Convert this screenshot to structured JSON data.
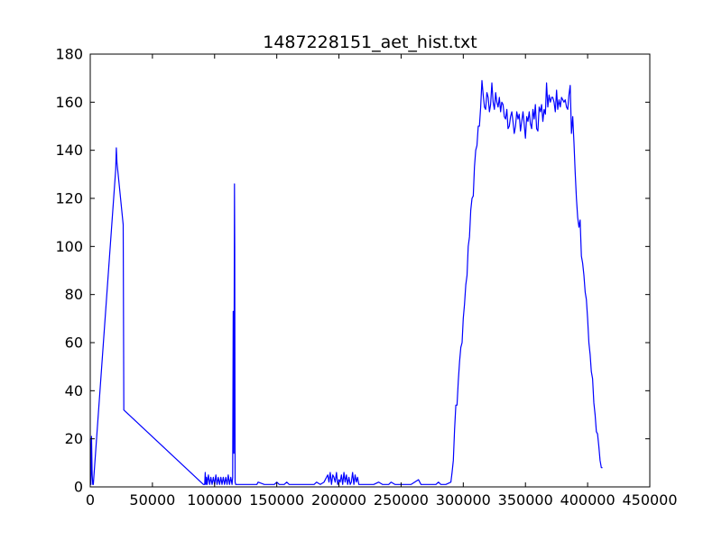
{
  "chart_data": {
    "type": "line",
    "title": "1487228151_aet_hist.txt",
    "xlabel": "",
    "ylabel": "",
    "xlim": [
      0,
      450000
    ],
    "ylim": [
      0,
      180
    ],
    "xticks": [
      "0",
      "50000",
      "100000",
      "150000",
      "200000",
      "250000",
      "300000",
      "350000",
      "400000",
      "450000"
    ],
    "yticks": [
      "0",
      "20",
      "40",
      "60",
      "80",
      "100",
      "120",
      "140",
      "160",
      "180"
    ],
    "grid": false,
    "legend": "none",
    "series": [
      {
        "color": "#0000ff",
        "x": [
          0,
          500,
          1000,
          1500,
          2000,
          2500,
          20500,
          21000,
          21500,
          26500,
          27000,
          91000,
          92000,
          92500,
          93000,
          93500,
          94000,
          95000,
          96000,
          97000,
          98000,
          99000,
          100000,
          101000,
          102000,
          103000,
          104000,
          105000,
          106000,
          107000,
          108000,
          109000,
          110000,
          111000,
          112000,
          113000,
          114000,
          114500,
          115000,
          115500,
          116000,
          116200,
          116500,
          117000,
          118000,
          120000,
          130000,
          134000,
          135000,
          140000,
          148000,
          150000,
          152000,
          156000,
          158000,
          160000,
          170000,
          180000,
          182000,
          185000,
          188000,
          190000,
          191000,
          192000,
          193000,
          194000,
          195000,
          196000,
          197000,
          198000,
          199000,
          200000,
          201000,
          202000,
          203000,
          204000,
          205000,
          206000,
          207000,
          208000,
          209000,
          210000,
          211000,
          212000,
          213000,
          214000,
          215000,
          216000,
          218000,
          222000,
          228000,
          232000,
          235000,
          240000,
          242000,
          245000,
          250000,
          258000,
          264000,
          266000,
          270000,
          278000,
          280000,
          282000,
          286000,
          290000,
          291000,
          292000,
          293000,
          294000,
          295000,
          296000,
          297000,
          298000,
          299000,
          300000,
          301000,
          302000,
          303000,
          304000,
          305000,
          306000,
          307000,
          308000,
          309000,
          310000,
          311000,
          312000,
          313000,
          314000,
          315000,
          316000,
          317000,
          318000,
          319000,
          320000,
          321000,
          322000,
          323000,
          324000,
          325000,
          326000,
          327000,
          328000,
          329000,
          330000,
          331000,
          332000,
          333000,
          334000,
          335000,
          336000,
          337000,
          338000,
          339000,
          340000,
          341000,
          342000,
          343000,
          344000,
          345000,
          346000,
          347000,
          348000,
          349000,
          350000,
          351000,
          352000,
          353000,
          354000,
          355000,
          356000,
          357000,
          358000,
          359000,
          360000,
          361000,
          362000,
          363000,
          364000,
          365000,
          366000,
          367000,
          368000,
          369000,
          370000,
          371000,
          372000,
          373000,
          374000,
          375000,
          376000,
          377000,
          378000,
          379000,
          380000,
          381000,
          382000,
          383000,
          384000,
          385000,
          386000,
          387000,
          388000,
          389000,
          390000,
          391000,
          392000,
          393000,
          394000,
          395000,
          396000,
          397000,
          398000,
          399000,
          400000,
          401000,
          402000,
          403000,
          404000,
          405000,
          406000,
          407000,
          408000,
          409000,
          410000,
          411000,
          412000
        ],
        "y": [
          20,
          1,
          21,
          5,
          1,
          1,
          132,
          141,
          135,
          109,
          32,
          1,
          1,
          6,
          1,
          4,
          1,
          5,
          1,
          4,
          1,
          4,
          1,
          5,
          1,
          4,
          1,
          4,
          1,
          4,
          1,
          4,
          1,
          5,
          1,
          4,
          1,
          4,
          73,
          14,
          126,
          100,
          2,
          1,
          1,
          1,
          1,
          1,
          2,
          1,
          1,
          2,
          1,
          1,
          2,
          1,
          1,
          1,
          2,
          1,
          2,
          4,
          5,
          2,
          6,
          1,
          5,
          4,
          2,
          6,
          1,
          3,
          2,
          5,
          1,
          6,
          2,
          5,
          1,
          4,
          1,
          2,
          6,
          1,
          5,
          2,
          4,
          1,
          1,
          1,
          1,
          2,
          1,
          1,
          2,
          1,
          1,
          1,
          3,
          1,
          1,
          1,
          2,
          1,
          1,
          2,
          6,
          11,
          24,
          34,
          34,
          44,
          52,
          58,
          60,
          70,
          76,
          84,
          88,
          100,
          104,
          115,
          120,
          121,
          133,
          140,
          142,
          150,
          150,
          158,
          169,
          163,
          158,
          157,
          164,
          162,
          156,
          159,
          168,
          160,
          157,
          164,
          160,
          158,
          162,
          156,
          160,
          159,
          154,
          153,
          157,
          149,
          150,
          154,
          156,
          152,
          147,
          150,
          156,
          153,
          155,
          148,
          152,
          156,
          151,
          145,
          154,
          152,
          156,
          151,
          149,
          157,
          153,
          159,
          149,
          148,
          158,
          156,
          159,
          152,
          157,
          155,
          168,
          158,
          163,
          160,
          162,
          162,
          160,
          156,
          165,
          157,
          161,
          158,
          162,
          161,
          160,
          161,
          158,
          157,
          163,
          167,
          147,
          154,
          143,
          131,
          120,
          112,
          108,
          111,
          96,
          93,
          88,
          81,
          78,
          70,
          60,
          55,
          48,
          45,
          35,
          30,
          23,
          22,
          17,
          11,
          8,
          8
        ]
      }
    ]
  }
}
